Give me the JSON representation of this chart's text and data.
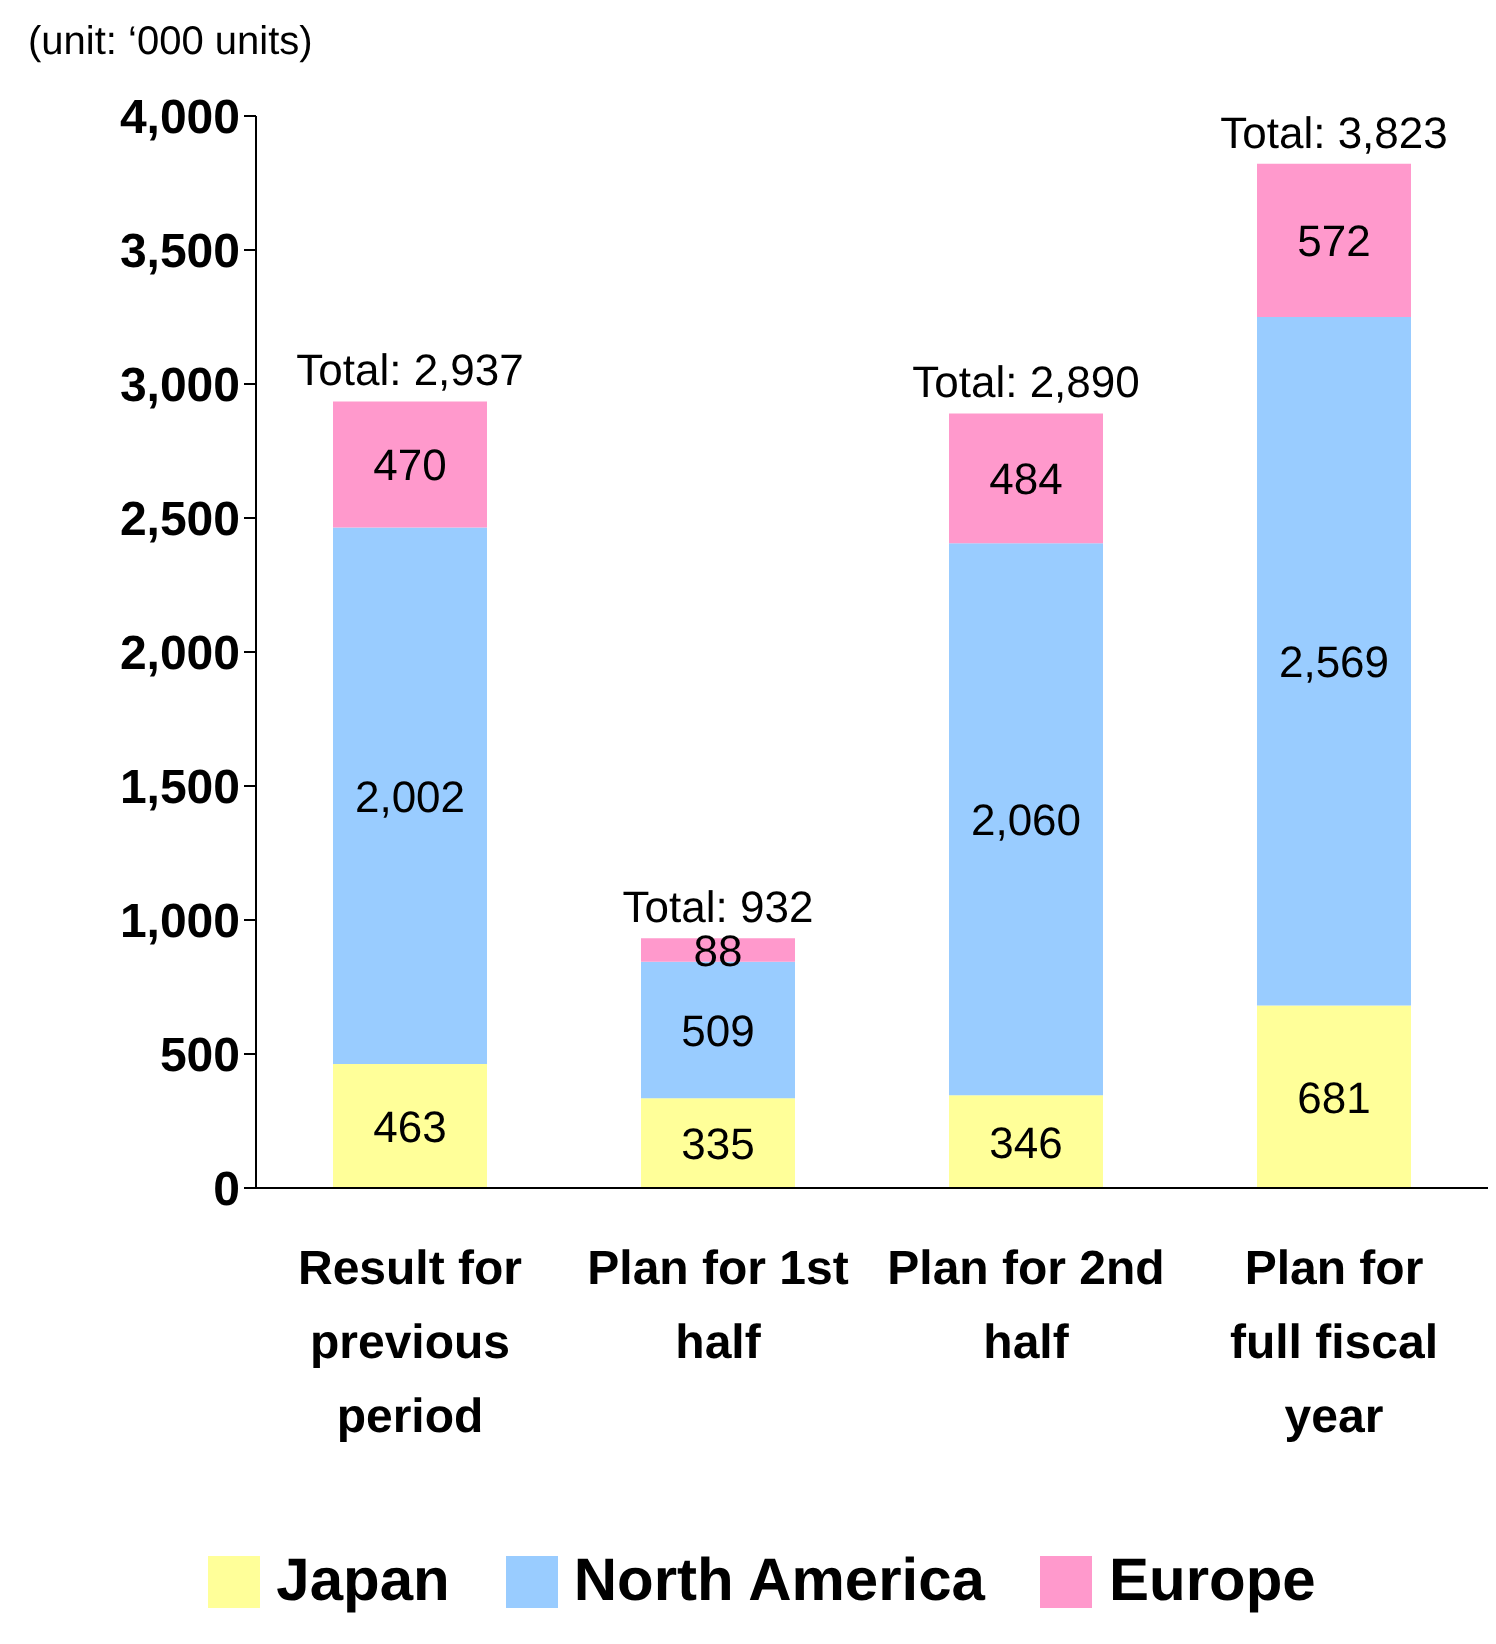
{
  "chart_data": {
    "type": "bar",
    "stacked": true,
    "ylabel": "(unit: ‘000 units)",
    "categories": [
      "Result for previous period",
      "Plan for 1st half",
      "Plan for 2nd half",
      "Plan for full fiscal year"
    ],
    "series": [
      {
        "name": "Japan",
        "color": "#ffff99",
        "values": [
          463,
          335,
          346,
          681
        ],
        "value_labels": [
          "463",
          "335",
          "346",
          "681"
        ]
      },
      {
        "name": "North America",
        "color": "#99ccff",
        "values": [
          2002,
          509,
          2060,
          2569
        ],
        "value_labels": [
          "2,002",
          "509",
          "2,060",
          "2,569"
        ]
      },
      {
        "name": "Europe",
        "color": "#ff99cc",
        "values": [
          470,
          88,
          484,
          572
        ],
        "value_labels": [
          "470",
          "88",
          "484",
          "572"
        ]
      }
    ],
    "totals": [
      "Total: 2,937",
      "Total: 932",
      "Total: 2,890",
      "Total: 3,823"
    ],
    "ylim": [
      0,
      4000
    ],
    "yticks": [
      0,
      500,
      {
        "value": 1000,
        "label": "1,000"
      },
      {
        "value": 1500,
        "label": "1,500"
      },
      {
        "value": 2000,
        "label": "2,000"
      },
      {
        "value": 2500,
        "label": "2,500"
      },
      {
        "value": 3000,
        "label": "3,000"
      },
      {
        "value": 3500,
        "label": "3,500"
      },
      {
        "value": 4000,
        "label": "4,000"
      }
    ],
    "legend": "bottom"
  }
}
